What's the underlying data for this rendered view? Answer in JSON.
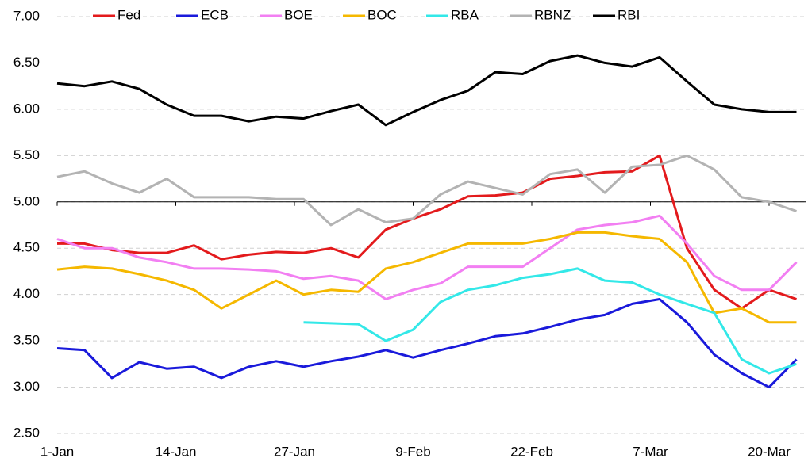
{
  "chart_data": {
    "type": "line",
    "x": [
      0,
      3,
      6,
      9,
      12,
      15,
      18,
      21,
      24,
      27,
      30,
      33,
      36,
      39,
      42,
      45,
      48,
      51,
      54,
      57,
      60,
      63,
      66,
      69,
      72,
      75,
      78,
      81
    ],
    "xlim": [
      0,
      82
    ],
    "xticks": [
      {
        "value": 0,
        "label": "1-Jan"
      },
      {
        "value": 13,
        "label": "14-Jan"
      },
      {
        "value": 26,
        "label": "27-Jan"
      },
      {
        "value": 39,
        "label": "9-Feb"
      },
      {
        "value": 52,
        "label": "22-Feb"
      },
      {
        "value": 65,
        "label": "7-Mar"
      },
      {
        "value": 78,
        "label": "20-Mar"
      }
    ],
    "ylim": [
      2.5,
      7.0
    ],
    "yticks": [
      {
        "value": 2.5,
        "label": "2.50"
      },
      {
        "value": 3,
        "label": "3.00"
      },
      {
        "value": 3.5,
        "label": "3.50"
      },
      {
        "value": 4,
        "label": "4.00"
      },
      {
        "value": 4.5,
        "label": "4.50"
      },
      {
        "value": 5,
        "label": "5.00"
      },
      {
        "value": 5.5,
        "label": "5.50"
      },
      {
        "value": 6,
        "label": "6.00"
      },
      {
        "value": 6.5,
        "label": "6.50"
      },
      {
        "value": 7,
        "label": "7.00"
      }
    ],
    "grid": true,
    "x_axis_crosses": 5,
    "legend": "top",
    "series": [
      {
        "name": "Fed",
        "color": "#e31a1c",
        "values": [
          4.55,
          4.55,
          4.48,
          4.45,
          4.45,
          4.53,
          4.38,
          4.43,
          4.46,
          4.45,
          4.5,
          4.4,
          4.7,
          4.82,
          4.92,
          5.06,
          5.07,
          5.1,
          5.25,
          5.28,
          5.32,
          5.33,
          5.5,
          4.5,
          4.05,
          3.85,
          4.05,
          3.95
        ]
      },
      {
        "name": "ECB",
        "color": "#1a1adb",
        "values": [
          3.42,
          3.4,
          3.1,
          3.27,
          3.2,
          3.22,
          3.1,
          3.22,
          3.28,
          3.22,
          3.28,
          3.33,
          3.4,
          3.32,
          3.4,
          3.47,
          3.55,
          3.58,
          3.65,
          3.73,
          3.78,
          3.9,
          3.95,
          3.7,
          3.35,
          3.15,
          3.0,
          3.3
        ]
      },
      {
        "name": "BOE",
        "color": "#f27ff2",
        "values": [
          4.6,
          4.5,
          4.5,
          4.4,
          4.35,
          4.28,
          4.28,
          4.27,
          4.25,
          4.17,
          4.2,
          4.15,
          3.95,
          4.05,
          4.12,
          4.3,
          4.3,
          4.3,
          4.5,
          4.7,
          4.75,
          4.78,
          4.85,
          4.55,
          4.2,
          4.05,
          4.05,
          4.35
        ]
      },
      {
        "name": "BOC",
        "color": "#f5b800",
        "values": [
          4.27,
          4.3,
          4.28,
          4.22,
          4.15,
          4.05,
          3.85,
          4.0,
          4.15,
          4.0,
          4.05,
          4.03,
          4.28,
          4.35,
          4.45,
          4.55,
          4.55,
          4.55,
          4.6,
          4.67,
          4.67,
          4.63,
          4.6,
          4.35,
          3.8,
          3.85,
          3.7,
          3.7
        ]
      },
      {
        "name": "RBA",
        "color": "#33e8e8",
        "values": [
          null,
          null,
          null,
          null,
          null,
          null,
          null,
          null,
          null,
          3.7,
          3.69,
          3.68,
          3.5,
          3.62,
          3.92,
          4.05,
          4.1,
          4.18,
          4.22,
          4.28,
          4.15,
          4.13,
          4.0,
          3.9,
          3.8,
          3.3,
          3.15,
          3.25
        ]
      },
      {
        "name": "RBNZ",
        "color": "#b3b3b3",
        "values": [
          5.27,
          5.33,
          5.2,
          5.1,
          5.25,
          5.05,
          5.05,
          5.05,
          5.03,
          5.03,
          4.75,
          4.92,
          4.78,
          4.82,
          5.08,
          5.22,
          5.15,
          5.08,
          5.3,
          5.35,
          5.1,
          5.38,
          5.4,
          5.5,
          5.35,
          5.05,
          5.0,
          4.9
        ]
      },
      {
        "name": "RBI",
        "color": "#000000",
        "values": [
          6.28,
          6.25,
          6.3,
          6.22,
          6.05,
          5.93,
          5.93,
          5.87,
          5.92,
          5.9,
          5.98,
          6.05,
          5.83,
          5.97,
          6.1,
          6.2,
          6.4,
          6.38,
          6.52,
          6.58,
          6.5,
          6.46,
          6.56,
          6.3,
          6.05,
          6.0,
          5.97,
          5.97
        ]
      }
    ]
  }
}
